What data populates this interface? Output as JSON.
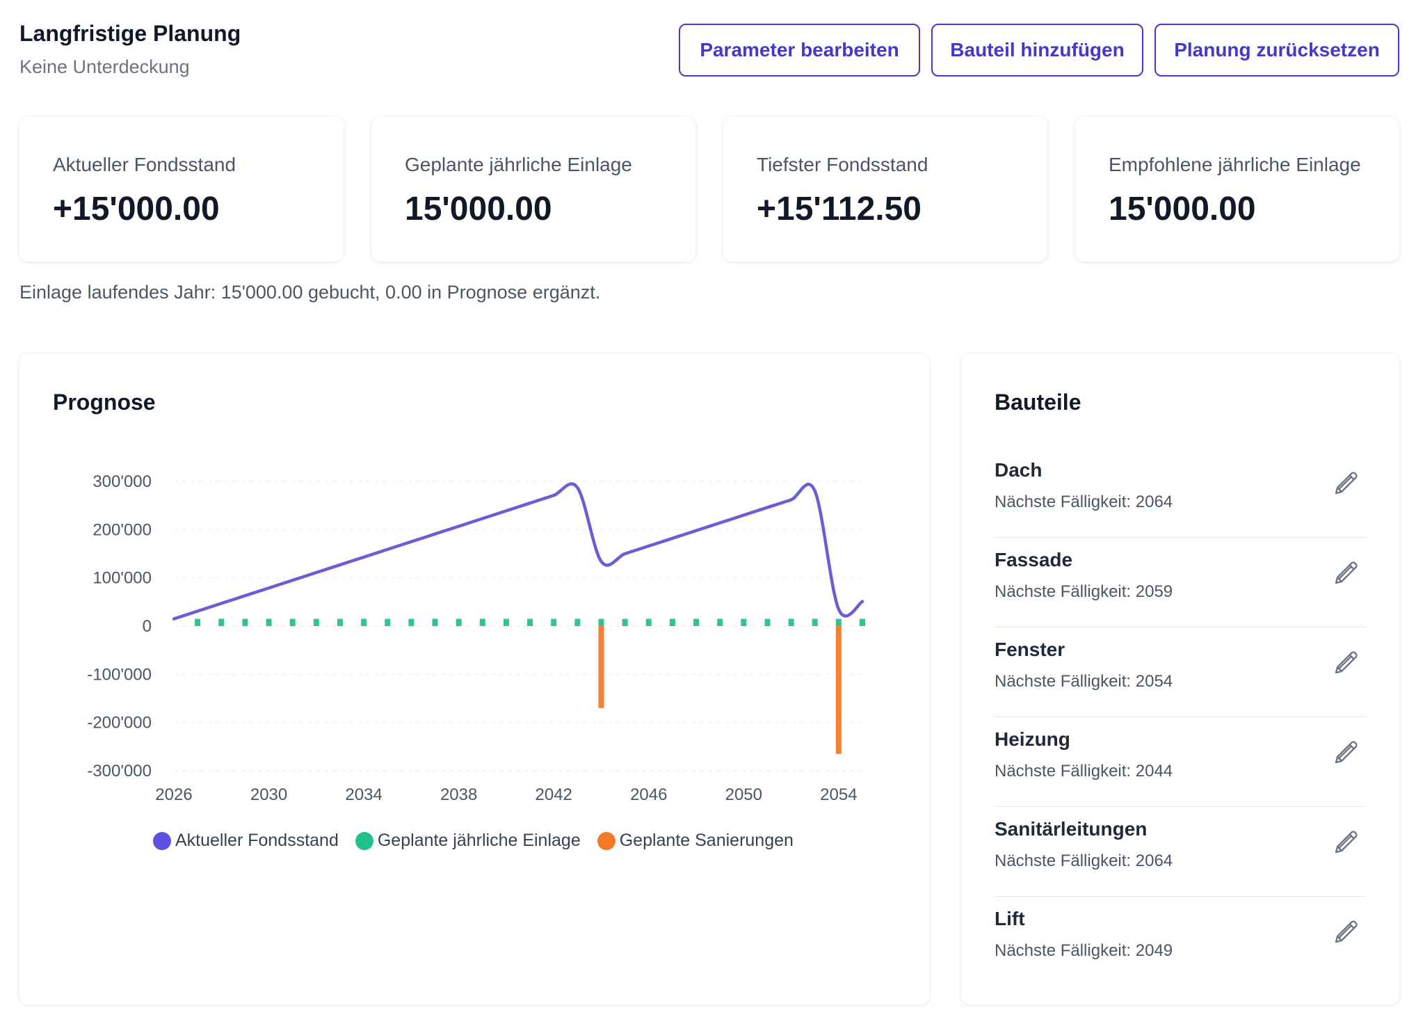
{
  "header": {
    "title": "Langfristige Planung",
    "subtitle": "Keine Unterdeckung"
  },
  "actions": {
    "edit_params": "Parameter bearbeiten",
    "add_component": "Bauteil hinzufügen",
    "reset_plan": "Planung zurücksetzen"
  },
  "kpis": [
    {
      "label": "Aktueller Fondsstand",
      "value": "+15'000.00"
    },
    {
      "label": "Geplante jährliche Einlage",
      "value": "15'000.00"
    },
    {
      "label": "Tiefster Fondsstand",
      "value": "+15'112.50"
    },
    {
      "label": "Empfohlene jährliche Einlage",
      "value": "15'000.00"
    }
  ],
  "note": "Einlage laufendes Jahr: 15'000.00 gebucht, 0.00 in Prognose ergänzt.",
  "forecast": {
    "title": "Prognose"
  },
  "chart_data": {
    "type": "line",
    "title": "Prognose",
    "xlabel": "",
    "ylabel": "",
    "xlim": [
      2026,
      2055
    ],
    "ylim": [
      -300000,
      300000
    ],
    "x_ticks": [
      "2026",
      "2030",
      "2034",
      "2038",
      "2042",
      "2046",
      "2050",
      "2054"
    ],
    "y_ticks": [
      "300'000",
      "200'000",
      "100'000",
      "0",
      "-100'000",
      "-200'000",
      "-300'000"
    ],
    "legend_position": "bottom",
    "series": [
      {
        "name": "Aktueller Fondsstand",
        "type": "line",
        "color": "#6a5ed6",
        "x": [
          2026,
          2027,
          2028,
          2029,
          2030,
          2031,
          2032,
          2033,
          2034,
          2035,
          2036,
          2037,
          2038,
          2039,
          2040,
          2041,
          2042,
          2043,
          2044,
          2045,
          2046,
          2047,
          2048,
          2049,
          2050,
          2051,
          2052,
          2053,
          2054,
          2055
        ],
        "values": [
          15000,
          31000,
          47000,
          63000,
          79000,
          95000,
          111000,
          127000,
          143000,
          159000,
          175000,
          191000,
          207000,
          223000,
          239000,
          255000,
          271000,
          287000,
          134000,
          150000,
          166000,
          182000,
          198000,
          214000,
          230000,
          246000,
          262000,
          280000,
          35000,
          51000
        ]
      },
      {
        "name": "Geplante jährliche Einlage",
        "type": "bar",
        "color": "#34c38f",
        "x": [
          2027,
          2028,
          2029,
          2030,
          2031,
          2032,
          2033,
          2034,
          2035,
          2036,
          2037,
          2038,
          2039,
          2040,
          2041,
          2042,
          2043,
          2044,
          2045,
          2046,
          2047,
          2048,
          2049,
          2050,
          2051,
          2052,
          2053,
          2054,
          2055
        ],
        "values": [
          15000,
          15000,
          15000,
          15000,
          15000,
          15000,
          15000,
          15000,
          15000,
          15000,
          15000,
          15000,
          15000,
          15000,
          15000,
          15000,
          15000,
          15000,
          15000,
          15000,
          15000,
          15000,
          15000,
          15000,
          15000,
          15000,
          15000,
          15000,
          15000
        ]
      },
      {
        "name": "Geplante Sanierungen",
        "type": "bar",
        "color": "#f58231",
        "x": [
          2044,
          2054
        ],
        "values": [
          -170000,
          -265000
        ]
      }
    ]
  },
  "components": {
    "title": "Bauteile",
    "items": [
      {
        "name": "Dach",
        "due": "Nächste Fälligkeit: 2064"
      },
      {
        "name": "Fassade",
        "due": "Nächste Fälligkeit: 2059"
      },
      {
        "name": "Fenster",
        "due": "Nächste Fälligkeit: 2054"
      },
      {
        "name": "Heizung",
        "due": "Nächste Fälligkeit: 2044"
      },
      {
        "name": "Sanitärleitungen",
        "due": "Nächste Fälligkeit: 2064"
      },
      {
        "name": "Lift",
        "due": "Nächste Fälligkeit: 2049"
      }
    ],
    "edit_icon": "pencil-icon"
  }
}
